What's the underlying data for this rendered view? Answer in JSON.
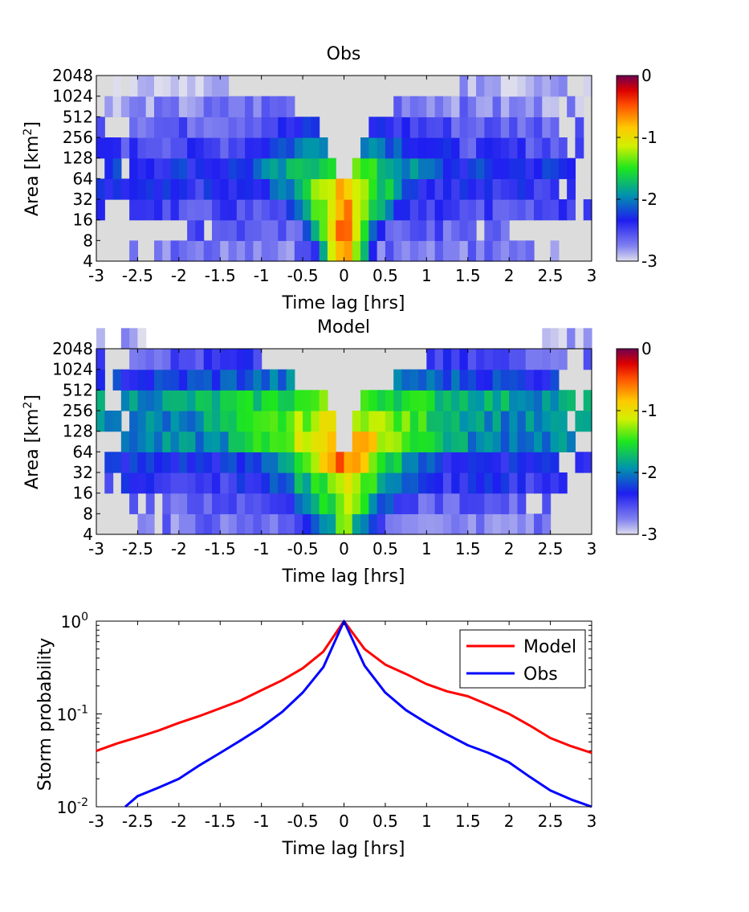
{
  "chart_data": [
    {
      "type": "heatmap",
      "title": "Obs",
      "xlabel": "Time lag [hrs]",
      "ylabel": "Area [km",
      "ylabel_sup": "2",
      "ylabel_end": "]",
      "xlim": [
        -3,
        3
      ],
      "xticks": [
        "-3",
        "-2.5",
        "-2",
        "-1.5",
        "-1",
        "-0.5",
        "0",
        "0.5",
        "1",
        "1.5",
        "2",
        "2.5",
        "3"
      ],
      "yticks": [
        "4",
        "8",
        "16",
        "32",
        "64",
        "128",
        "256",
        "512",
        "1024",
        "2048"
      ],
      "colorbar": {
        "range": [
          -3,
          0
        ],
        "ticks": [
          "0",
          "-1",
          "-2",
          "-3"
        ]
      },
      "rows": [
        {
          "area": "4",
          "peak": -0.2,
          "width": 0.45,
          "floor": -2.7,
          "extent": 2.6,
          "gap": 0.0
        },
        {
          "area": "8",
          "peak": -0.25,
          "width": 0.55,
          "floor": -2.6,
          "extent": 2.0,
          "gap": 0.0
        },
        {
          "area": "16",
          "peak": -0.35,
          "width": 0.8,
          "floor": -2.5,
          "extent": 3.0,
          "gap": 0.0
        },
        {
          "area": "32",
          "peak": -0.6,
          "width": 1.0,
          "floor": -2.4,
          "extent": 3.0,
          "gap": 0.0
        },
        {
          "area": "64",
          "peak": -1.2,
          "width": 1.3,
          "floor": -2.3,
          "extent": 3.0,
          "gap": 0.1
        },
        {
          "area": "128",
          "peak": -1.6,
          "width": 1.4,
          "floor": -2.5,
          "extent": 3.0,
          "gap": 0.15
        },
        {
          "area": "256",
          "peak": -2.2,
          "width": 1.5,
          "floor": -2.6,
          "extent": 3.0,
          "gap": 0.3
        },
        {
          "area": "512",
          "peak": -2.5,
          "width": 2.0,
          "floor": -2.8,
          "extent": 3.0,
          "gap": 0.6
        },
        {
          "area": "1024",
          "peak": -2.8,
          "width": 1.0,
          "floor": -2.9,
          "extent": 3.0,
          "gap": 1.4
        }
      ]
    },
    {
      "type": "heatmap",
      "title": "Model",
      "xlabel": "Time lag [hrs]",
      "ylabel": "Area [km",
      "ylabel_sup": "2",
      "ylabel_end": "]",
      "xlim": [
        -3,
        3
      ],
      "xticks": [
        "-3",
        "-2.5",
        "-2",
        "-1.5",
        "-1",
        "-0.5",
        "0",
        "0.5",
        "1",
        "1.5",
        "2",
        "2.5",
        "3"
      ],
      "yticks": [
        "4",
        "8",
        "16",
        "32",
        "64",
        "128",
        "256",
        "512",
        "1024",
        "2048"
      ],
      "colorbar": {
        "range": [
          -3,
          0
        ],
        "ticks": [
          "0",
          "-1",
          "-2",
          "-3"
        ]
      },
      "rows": [
        {
          "area": "4",
          "peak": -1.2,
          "width": 0.6,
          "floor": -2.7,
          "extent": 2.5,
          "gap": 0.0
        },
        {
          "area": "8",
          "peak": -1.0,
          "width": 0.8,
          "floor": -2.6,
          "extent": 2.6,
          "gap": 0.0
        },
        {
          "area": "16",
          "peak": -0.9,
          "width": 1.0,
          "floor": -2.4,
          "extent": 3.0,
          "gap": 0.0
        },
        {
          "area": "32",
          "peak": -0.4,
          "width": 1.1,
          "floor": -2.3,
          "extent": 3.0,
          "gap": 0.0
        },
        {
          "area": "64",
          "peak": -0.5,
          "width": 1.6,
          "floor": -2.0,
          "extent": 3.0,
          "gap": 0.08
        },
        {
          "area": "128",
          "peak": -0.9,
          "width": 2.0,
          "floor": -2.0,
          "extent": 3.0,
          "gap": 0.12
        },
        {
          "area": "256",
          "peak": -1.3,
          "width": 2.3,
          "floor": -1.9,
          "extent": 3.0,
          "gap": 0.2
        },
        {
          "area": "512",
          "peak": -1.9,
          "width": 2.5,
          "floor": -2.3,
          "extent": 3.0,
          "gap": 0.6
        },
        {
          "area": "1024",
          "peak": -2.3,
          "width": 2.5,
          "floor": -2.6,
          "extent": 3.0,
          "gap": 1.0
        },
        {
          "area": "2048",
          "peak": -2.8,
          "width": 1.0,
          "floor": -2.9,
          "extent": 3.0,
          "gap": 2.4
        }
      ]
    },
    {
      "type": "line",
      "xlabel": "Time lag [hrs]",
      "ylabel": "Storm probability",
      "xlim": [
        -3,
        3
      ],
      "ylim": [
        0.01,
        1
      ],
      "yscale": "log",
      "xticks": [
        "-3",
        "-2.5",
        "-2",
        "-1.5",
        "-1",
        "-0.5",
        "0",
        "0.5",
        "1",
        "1.5",
        "2",
        "2.5",
        "3"
      ],
      "yticks": [
        {
          "base": "10",
          "exp": "0"
        },
        {
          "base": "10",
          "exp": "-1"
        },
        {
          "base": "10",
          "exp": "-2"
        }
      ],
      "legend_position": "top-right",
      "series": [
        {
          "name": "Model",
          "color": "#ff0000",
          "x": [
            -3,
            -2.75,
            -2.5,
            -2.25,
            -2,
            -1.75,
            -1.5,
            -1.25,
            -1,
            -0.75,
            -0.5,
            -0.25,
            0,
            0.25,
            0.5,
            0.75,
            1,
            1.25,
            1.5,
            1.75,
            2,
            2.25,
            2.5,
            2.75,
            3
          ],
          "y": [
            0.04,
            0.048,
            0.056,
            0.066,
            0.08,
            0.095,
            0.115,
            0.14,
            0.18,
            0.23,
            0.31,
            0.47,
            1.0,
            0.5,
            0.34,
            0.27,
            0.21,
            0.175,
            0.155,
            0.125,
            0.1,
            0.075,
            0.055,
            0.045,
            0.038
          ]
        },
        {
          "name": "Obs",
          "color": "#0000ff",
          "x": [
            -2.65,
            -2.5,
            -2.25,
            -2,
            -1.75,
            -1.5,
            -1.25,
            -1,
            -0.75,
            -0.5,
            -0.25,
            0,
            0.25,
            0.5,
            0.75,
            1,
            1.25,
            1.5,
            1.75,
            2,
            2.25,
            2.5,
            2.75,
            3
          ],
          "y": [
            0.01,
            0.013,
            0.016,
            0.02,
            0.028,
            0.038,
            0.052,
            0.072,
            0.105,
            0.17,
            0.32,
            1.0,
            0.33,
            0.17,
            0.11,
            0.08,
            0.06,
            0.046,
            0.038,
            0.03,
            0.021,
            0.015,
            0.012,
            0.01
          ]
        }
      ]
    }
  ]
}
